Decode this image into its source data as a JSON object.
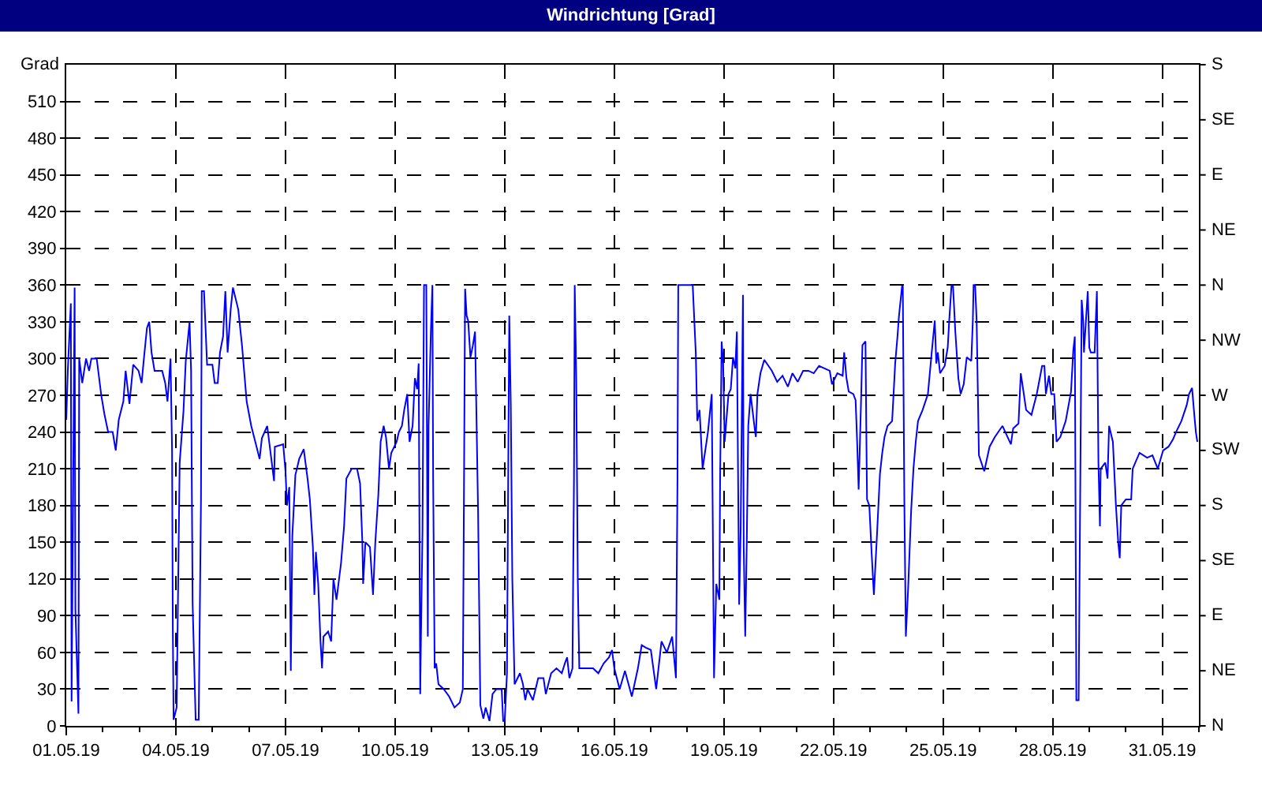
{
  "chart_data": {
    "type": "line",
    "title": "Windrichtung [Grad]",
    "ylabel": "Grad",
    "color": "#0000ff",
    "grid": true,
    "xlim": [
      "--05-01",
      "--06-01"
    ],
    "xticks": [
      {
        "value": "--05-01",
        "label": "01.05.19"
      },
      {
        "value": "--05-02",
        "label": null
      },
      {
        "value": "--05-03",
        "label": null
      },
      {
        "value": "--05-04",
        "label": "04.05.19"
      },
      {
        "value": "--05-05",
        "label": null
      },
      {
        "value": "--05-06",
        "label": null
      },
      {
        "value": "--05-07",
        "label": "07.05.19"
      },
      {
        "value": "--05-08",
        "label": null
      },
      {
        "value": "--05-09",
        "label": null
      },
      {
        "value": "--05-10",
        "label": "10.05.19"
      },
      {
        "value": "--05-11",
        "label": null
      },
      {
        "value": "--05-12",
        "label": null
      },
      {
        "value": "--05-13",
        "label": "13.05.19"
      },
      {
        "value": "--05-14",
        "label": null
      },
      {
        "value": "--05-15",
        "label": null
      },
      {
        "value": "--05-16",
        "label": "16.05.19"
      },
      {
        "value": "--05-17",
        "label": null
      },
      {
        "value": "--05-18",
        "label": null
      },
      {
        "value": "--05-19",
        "label": "19.05.19"
      },
      {
        "value": "--05-20",
        "label": null
      },
      {
        "value": "--05-21",
        "label": null
      },
      {
        "value": "--05-22",
        "label": "22.05.19"
      },
      {
        "value": "--05-23",
        "label": null
      },
      {
        "value": "--05-24",
        "label": null
      },
      {
        "value": "--05-25",
        "label": "25.05.19"
      },
      {
        "value": "--05-26",
        "label": null
      },
      {
        "value": "--05-27",
        "label": null
      },
      {
        "value": "--05-28",
        "label": "28.05.19"
      },
      {
        "value": "--05-29",
        "label": null
      },
      {
        "value": "--05-30",
        "label": null
      },
      {
        "value": "--05-31",
        "label": "31.05.19"
      },
      {
        "value": "--06-01",
        "label": null
      }
    ],
    "ylim": [
      0,
      540
    ],
    "yticks": [
      0,
      30,
      60,
      90,
      120,
      150,
      180,
      210,
      240,
      270,
      300,
      330,
      360,
      390,
      420,
      450,
      480,
      510
    ],
    "annotations": [
      "N",
      "NE",
      "E",
      "SE",
      "S",
      "SW",
      "W",
      "NW",
      "N",
      "NE",
      "E",
      "SE",
      "S"
    ],
    "x": [
      "--05-01T00:00",
      "--05-01T01:00",
      "--05-01T03:00",
      "--05-01T03:30",
      "--05-01T05:30",
      "--05-01T06:00",
      "--05-01T08:00",
      "--05-01T08:30",
      "--05-01T10:30",
      "--05-01T13:00",
      "--05-01T15:00",
      "--05-01T16:30",
      "--05-01T20:00",
      "--05-01T23:00",
      "--05-02T01:00",
      "--05-02T03:30",
      "--05-02T06:30",
      "--05-02T08:30",
      "--05-02T10:30",
      "--05-02T13:30",
      "--05-02T15:00",
      "--05-02T17:30",
      "--05-02T20:00",
      "--05-02T23:30",
      "--05-03T01:30",
      "--05-03T03:00",
      "--05-03T05:00",
      "--05-03T06:30",
      "--05-03T08:00",
      "--05-03T10:00",
      "--05-03T15:00",
      "--05-03T17:00",
      "--05-03T18:30",
      "--05-03T20:30",
      "--05-03T21:30",
      "--05-03T22:00",
      "--05-03T22:30",
      "--05-04T00:30",
      "--05-04T02:30",
      "--05-04T05:00",
      "--05-04T06:30",
      "--05-04T09:00",
      "--05-04T10:00",
      "--05-04T11:00",
      "--05-04T13:00",
      "--05-04T15:00",
      "--05-04T16:30",
      "--05-04T17:00",
      "--05-04T18:30",
      "--05-04T20:30",
      "--05-05T00:00",
      "--05-05T01:30",
      "--05-05T03:30",
      "--05-05T05:00",
      "--05-05T07:00",
      "--05-05T08:30",
      "--05-05T10:00",
      "--05-05T12:00",
      "--05-05T13:30",
      "--05-05T17:00",
      "--05-05T19:30",
      "--05-05T22:30",
      "--05-06T01:30",
      "--05-06T05:00",
      "--05-06T07:00",
      "--05-06T08:30",
      "--05-06T12:00",
      "--05-06T16:30",
      "--05-06T17:00",
      "--05-06T22:30",
      "--05-07T00:00",
      "--05-07T01:00",
      "--05-07T02:30",
      "--05-07T03:30",
      "--05-07T04:30",
      "--05-07T06:30",
      "--05-07T07:30",
      "--05-07T09:00",
      "--05-07T12:00",
      "--05-07T14:30",
      "--05-07T16:00",
      "--05-07T18:00",
      "--05-07T19:00",
      "--05-07T20:00",
      "--05-07T21:30",
      "--05-07T23:00",
      "--05-08T00:00",
      "--05-08T01:00",
      "--05-08T04:00",
      "--05-08T06:00",
      "--05-08T07:30",
      "--05-08T09:30",
      "--05-08T12:30",
      "--05-08T14:30",
      "--05-08T16:00",
      "--05-08T19:30",
      "--05-08T23:00",
      "--05-09T01:00",
      "--05-09T02:30",
      "--05-09T03:00",
      "--05-09T04:30",
      "--05-09T07:30",
      "--05-09T09:30",
      "--05-09T11:00",
      "--05-09T13:00",
      "--05-09T14:30",
      "--05-09T16:30",
      "--05-09T18:00",
      "--05-09T20:00",
      "--05-09T21:30",
      "--05-10T01:00",
      "--05-10T02:30",
      "--05-10T04:30",
      "--05-10T06:00",
      "--05-10T08:00",
      "--05-10T09:30",
      "--05-10T11:30",
      "--05-10T13:00",
      "--05-10T14:30",
      "--05-10T15:30",
      "--05-10T16:30",
      "--05-10T17:00",
      "--05-10T18:00",
      "--05-10T19:00",
      "--05-10T20:30",
      "--05-10T21:30",
      "--05-10T22:00",
      "--05-10T23:30",
      "--05-11T00:30",
      "--05-11T01:00",
      "--05-11T02:00",
      "--05-11T03:00",
      "--05-11T04:30",
      "--05-11T08:00",
      "--05-11T11:30",
      "--05-11T15:00",
      "--05-11T18:30",
      "--05-11T20:30",
      "--05-11T22:00",
      "--05-11T23:00",
      "--05-12T00:00",
      "--05-12T01:30",
      "--05-12T03:00",
      "--05-12T04:30",
      "--05-12T06:30",
      "--05-12T08:00",
      "--05-12T10:00",
      "--05-12T11:30",
      "--05-12T14:00",
      "--05-12T16:00",
      "--05-12T18:30",
      "--05-12T22:00",
      "--05-12T23:00",
      "--05-13T00:00",
      "--05-13T01:30",
      "--05-13T02:30",
      "--05-13T03:00",
      "--05-13T04:00",
      "--05-13T05:00",
      "--05-13T06:30",
      "--05-13T10:00",
      "--05-13T12:00",
      "--05-13T13:30",
      "--05-13T15:00",
      "--05-13T18:30",
      "--05-13T22:00",
      "--05-14T01:30",
      "--05-14T03:00",
      "--05-14T06:30",
      "--05-14T10:00",
      "--05-14T13:30",
      "--05-14T15:30",
      "--05-14T17:00",
      "--05-14T18:30",
      "--05-14T20:30",
      "--05-14T21:30",
      "--05-14T22:00",
      "--05-14T23:00",
      "--05-15T00:00",
      "--05-15T01:00",
      "--05-15T04:00",
      "--05-15T07:00",
      "--05-15T10:00",
      "--05-15T13:30",
      "--05-15T17:00",
      "--05-15T20:30",
      "--05-15T22:30",
      "--05-16T00:00",
      "--05-16T03:30",
      "--05-16T07:00",
      "--05-16T11:30",
      "--05-16T15:30",
      "--05-16T18:00",
      "--05-16T20:30",
      "--05-17T00:00",
      "--05-17T03:30",
      "--05-17T07:00",
      "--05-17T10:30",
      "--05-17T14:00",
      "--05-17T16:30",
      "--05-17T17:30",
      "--05-17T18:00",
      "--05-18T03:30",
      "--05-18T05:30",
      "--05-18T06:30",
      "--05-18T08:00",
      "--05-18T10:00",
      "--05-18T13:30",
      "--05-18T16:00",
      "--05-18T17:30",
      "--05-18T19:00",
      "--05-18T21:00",
      "--05-18T21:30",
      "--05-18T22:30",
      "--05-18T23:30",
      "--05-19T00:30",
      "--05-19T03:00",
      "--05-19T04:30",
      "--05-19T06:00",
      "--05-19T07:30",
      "--05-19T08:30",
      "--05-19T10:00",
      "--05-19T11:00",
      "--05-19T12:30",
      "--05-19T13:00",
      "--05-19T14:00",
      "--05-19T15:00",
      "--05-19T16:00",
      "--05-19T17:30",
      "--05-19T20:30",
      "--05-19T21:00",
      "--05-19T22:00",
      "--05-20T00:00",
      "--05-20T02:30",
      "--05-20T07:30",
      "--05-20T11:00",
      "--05-20T14:30",
      "--05-20T18:00",
      "--05-20T21:00",
      "--05-21T00:30",
      "--05-21T04:00",
      "--05-21T07:30",
      "--05-21T11:00",
      "--05-21T14:30",
      "--05-21T18:00",
      "--05-21T21:30",
      "--05-21T23:00",
      "--05-22T02:30",
      "--05-22T06:00",
      "--05-22T07:00",
      "--05-22T08:30",
      "--05-22T10:00",
      "--05-22T13:00",
      "--05-22T14:30",
      "--05-22T15:30",
      "--05-22T16:30",
      "--05-22T18:00",
      "--05-22T19:00",
      "--05-22T21:00",
      "--05-22T21:30",
      "--05-22T22:00",
      "--05-22T23:30",
      "--05-23T01:00",
      "--05-23T02:30",
      "--05-23T04:30",
      "--05-23T06:30",
      "--05-23T08:00",
      "--05-23T09:30",
      "--05-23T11:30",
      "--05-23T14:30",
      "--05-23T16:30",
      "--05-23T18:00",
      "--05-23T19:00",
      "--05-23T21:00",
      "--05-23T21:30",
      "--05-23T22:30",
      "--05-23T23:30",
      "--05-24T00:30",
      "--05-24T01:00",
      "--05-24T03:00",
      "--05-24T04:30",
      "--05-24T06:00",
      "--05-24T07:30",
      "--05-24T10:30",
      "--05-24T14:00",
      "--05-24T16:30",
      "--05-24T18:30",
      "--05-24T19:30",
      "--05-24T20:30",
      "--05-24T22:00",
      "--05-25T01:00",
      "--05-25T03:00",
      "--05-25T04:00",
      "--05-25T05:30",
      "--05-25T06:30",
      "--05-25T08:00",
      "--05-25T10:00",
      "--05-25T11:30",
      "--05-25T13:30",
      "--05-25T15:30",
      "--05-25T18:30",
      "--05-25T19:30",
      "--05-25T20:00",
      "--05-25T21:00",
      "--05-25T22:00",
      "--05-25T23:00",
      "--05-25T23:30",
      "--05-26T03:00",
      "--05-26T06:30",
      "--05-26T10:00",
      "--05-26T15:00",
      "--05-26T20:30",
      "--05-26T22:00",
      "--05-27T01:30",
      "--05-27T03:00",
      "--05-27T05:00",
      "--05-27T06:30",
      "--05-27T10:00",
      "--05-27T13:30",
      "--05-27T17:00",
      "--05-27T18:30",
      "--05-27T19:30",
      "--05-27T21:30",
      "--05-27T23:00",
      "--05-28T01:00",
      "--05-28T02:30",
      "--05-28T05:00",
      "--05-28T08:30",
      "--05-28T12:00",
      "--05-28T13:30",
      "--05-28T14:30",
      "--05-28T15:30",
      "--05-28T17:00",
      "--05-28T18:00",
      "--05-28T19:00",
      "--05-28T20:00",
      "--05-28T20:30",
      "--05-28T23:00",
      "--05-29T00:00",
      "--05-29T01:00",
      "--05-29T03:30",
      "--05-29T05:00",
      "--05-29T06:00",
      "--05-29T07:00",
      "--05-29T07:30",
      "--05-29T10:30",
      "--05-29T12:00",
      "--05-29T13:00",
      "--05-29T15:30",
      "--05-29T17:30",
      "--05-29T19:00",
      "--05-29T20:00",
      "--05-29T21:00",
      "--05-30T00:00",
      "--05-30T03:30",
      "--05-30T04:30",
      "--05-30T09:00",
      "--05-30T14:00",
      "--05-30T17:30",
      "--05-30T21:00",
      "--05-31T00:30",
      "--05-31T04:00",
      "--05-31T07:00",
      "--05-31T09:00",
      "--05-31T12:30",
      "--05-31T16:00",
      "--05-31T17:30",
      "--05-31T19:30",
      "--05-31T21:00",
      "--05-31T22:00",
      "--05-31T23:00"
    ],
    "values": [
      250,
      290,
      345,
      20,
      358,
      95,
      10,
      300,
      280,
      300,
      290,
      300,
      300,
      270,
      255,
      240,
      240,
      225,
      250,
      265,
      290,
      263,
      295,
      290,
      280,
      300,
      325,
      330,
      305,
      290,
      290,
      280,
      265,
      300,
      225,
      80,
      5,
      15,
      215,
      257,
      298,
      330,
      290,
      100,
      5,
      5,
      185,
      355,
      355,
      295,
      295,
      280,
      280,
      305,
      318,
      355,
      305,
      340,
      358,
      340,
      310,
      265,
      245,
      228,
      218,
      235,
      245,
      200,
      228,
      230,
      208,
      180,
      195,
      45,
      155,
      205,
      210,
      218,
      226,
      202,
      185,
      146,
      107,
      142,
      116,
      69,
      47,
      73,
      77,
      69,
      120,
      103,
      133,
      163,
      202,
      210,
      210,
      198,
      150,
      116,
      150,
      146,
      107,
      150,
      189,
      232,
      245,
      236,
      210,
      223,
      232,
      240,
      245,
      258,
      271,
      232,
      245,
      284,
      275,
      296,
      26,
      73,
      159,
      360,
      360,
      73,
      245,
      322,
      360,
      202,
      47,
      51,
      34,
      30,
      24,
      15,
      19,
      30,
      357,
      335,
      331,
      301,
      310,
      322,
      176,
      17,
      6,
      15,
      4,
      26,
      30,
      30,
      4,
      4,
      43,
      245,
      335,
      262,
      120,
      34,
      43,
      34,
      21,
      30,
      21,
      39,
      39,
      26,
      43,
      47,
      43,
      51,
      56,
      39,
      47,
      202,
      360,
      284,
      120,
      47,
      47,
      47,
      47,
      43,
      51,
      56,
      62,
      47,
      30,
      45,
      24,
      47,
      66,
      64,
      62,
      30,
      69,
      60,
      73,
      39,
      202,
      360,
      360,
      305,
      249,
      258,
      210,
      240,
      271,
      39,
      116,
      103,
      202,
      314,
      296,
      232,
      271,
      275,
      301,
      292,
      322,
      99,
      160,
      352,
      146,
      73,
      150,
      245,
      271,
      240,
      236,
      271,
      288,
      299,
      290,
      281,
      286,
      277,
      288,
      281,
      290,
      290,
      288,
      294,
      292,
      290,
      279,
      288,
      286,
      305,
      284,
      273,
      271,
      266,
      232,
      193,
      262,
      311,
      314,
      245,
      185,
      180,
      142,
      107,
      155,
      206,
      223,
      236,
      245,
      249,
      296,
      318,
      335,
      359,
      359,
      185,
      73,
      99,
      112,
      176,
      210,
      232,
      249,
      258,
      271,
      305,
      331,
      296,
      305,
      288,
      294,
      309,
      331,
      360,
      359,
      322,
      284,
      271,
      279,
      301,
      298,
      331,
      360,
      360,
      331,
      258,
      221,
      208,
      228,
      236,
      245,
      230,
      243,
      247,
      288,
      271,
      258,
      254,
      271,
      294,
      294,
      271,
      286,
      271,
      271,
      232,
      236,
      249,
      273,
      307,
      318,
      21,
      21,
      185,
      348,
      331,
      305,
      355,
      309,
      305,
      305,
      355,
      215,
      163,
      210,
      215,
      202,
      245,
      232,
      180,
      150,
      137,
      180,
      185,
      185,
      210,
      223,
      219,
      221,
      210,
      225,
      228,
      234,
      240,
      249,
      262,
      271,
      276,
      254,
      240,
      232
    ]
  }
}
